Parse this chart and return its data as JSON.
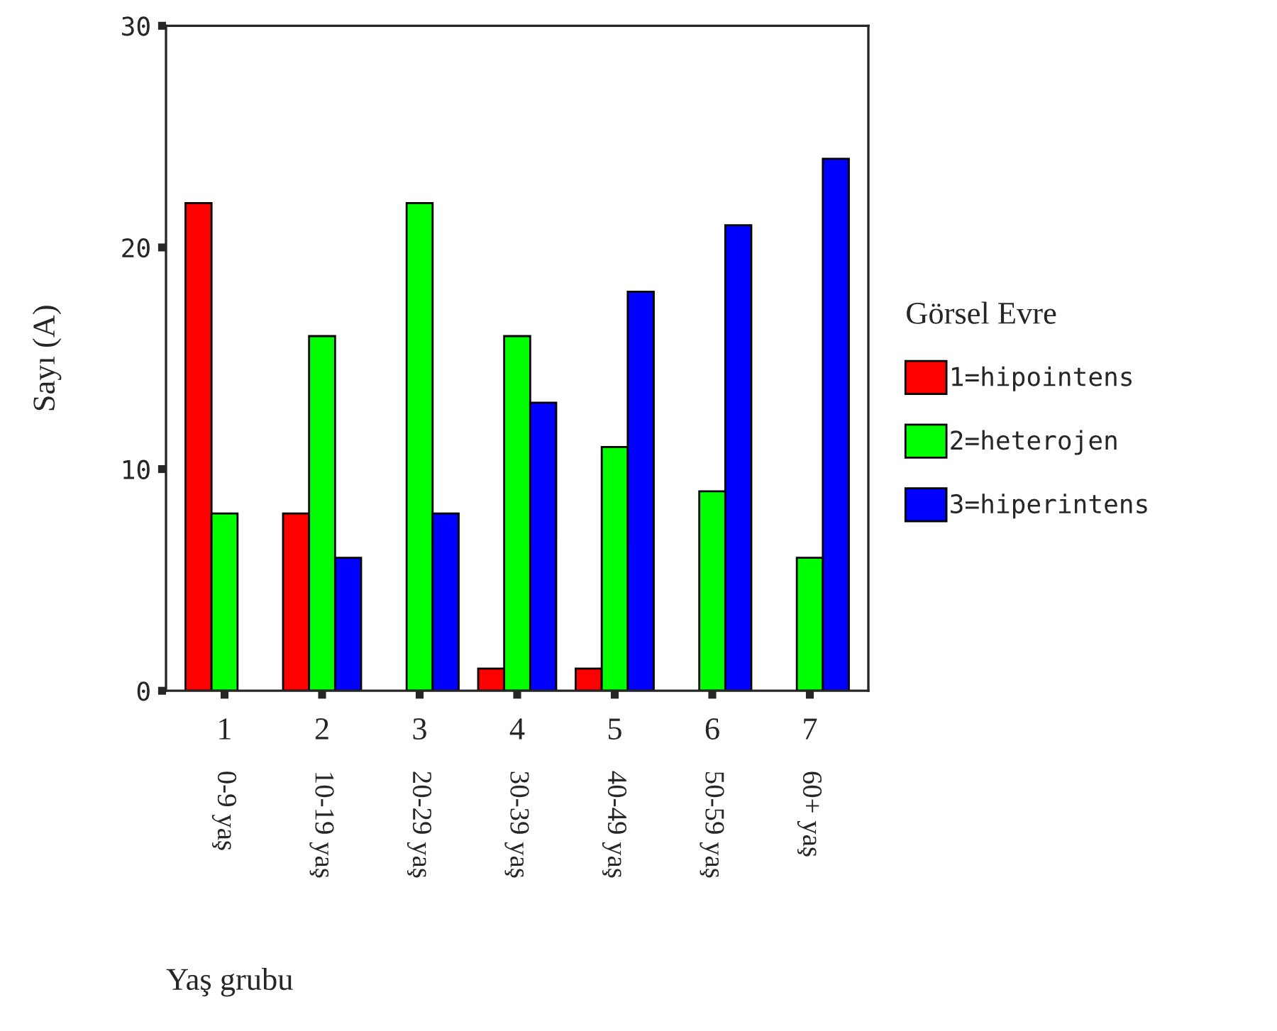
{
  "chart_data": {
    "type": "bar",
    "categories": [
      "1\n0-9 yaş",
      "2\n10-19 yaş",
      "3\n20-29 yaş",
      "4\n30-39 yaş",
      "5\n40-49 yaş",
      "6\n50-59 yaş",
      "7\n60+ yaş"
    ],
    "series": [
      {
        "name": "1=hipointens",
        "color": "#ff0000",
        "values": [
          22,
          8,
          null,
          1,
          1,
          null,
          null
        ]
      },
      {
        "name": "2=heterojen",
        "color": "#00ff00",
        "values": [
          8,
          16,
          22,
          16,
          11,
          9,
          6
        ]
      },
      {
        "name": "3=hiperintens",
        "color": "#0000ff",
        "values": [
          null,
          6,
          8,
          13,
          18,
          21,
          24
        ]
      }
    ],
    "xlabel": "Yaş grubu",
    "ylabel": "Sayı (A)",
    "legend_title": "Görsel Evre",
    "legend": "right",
    "ylim": [
      0,
      30
    ],
    "yticks": [
      0,
      10,
      20,
      30
    ],
    "grid": false
  }
}
